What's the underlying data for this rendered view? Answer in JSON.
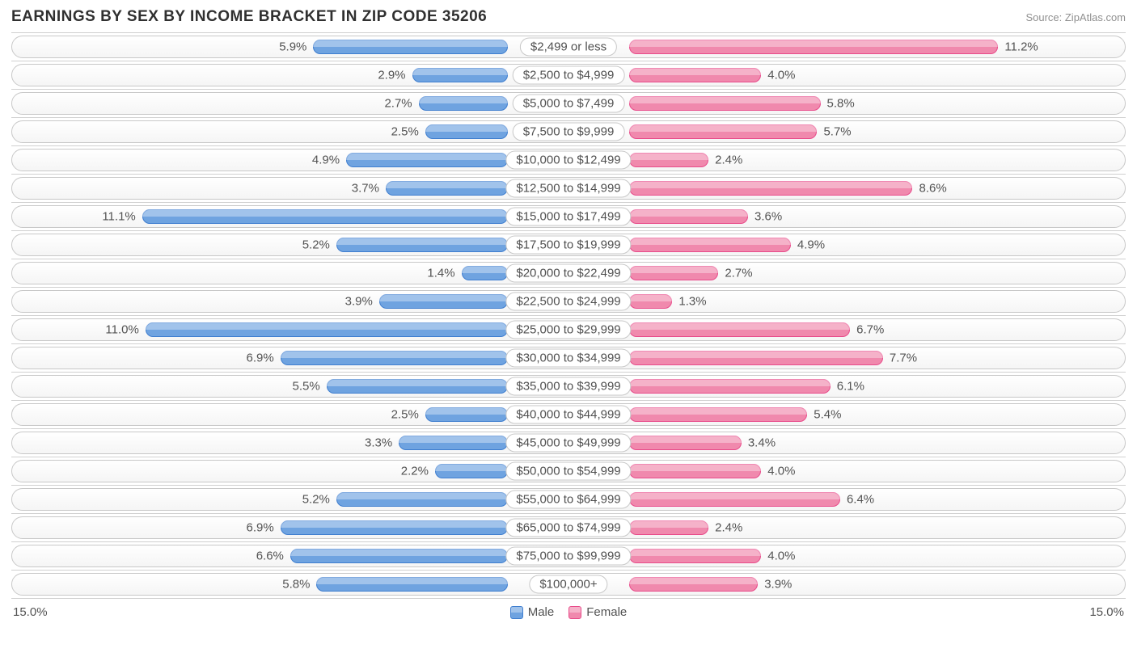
{
  "title": "EARNINGS BY SEX BY INCOME BRACKET IN ZIP CODE 35206",
  "source": "Source: ZipAtlas.com",
  "axis_max": 15.0,
  "axis_label_left": "15.0%",
  "axis_label_right": "15.0%",
  "legend": {
    "male": {
      "label": "Male",
      "color": "#6fa3e0",
      "border": "#3f7ecf"
    },
    "female": {
      "label": "Female",
      "color": "#f089ad",
      "border": "#e84b8a"
    }
  },
  "colors": {
    "male_bg": "#6fa3e0",
    "male_border": "#3f7ecf",
    "female_bg": "#f089ad",
    "female_border": "#e84b8a",
    "text": "#535353",
    "track_border": "#c8c8c8",
    "grid": "#d0d0d0"
  },
  "rows": [
    {
      "label": "$2,499 or less",
      "male": 5.9,
      "female": 11.2
    },
    {
      "label": "$2,500 to $4,999",
      "male": 2.9,
      "female": 4.0
    },
    {
      "label": "$5,000 to $7,499",
      "male": 2.7,
      "female": 5.8
    },
    {
      "label": "$7,500 to $9,999",
      "male": 2.5,
      "female": 5.7
    },
    {
      "label": "$10,000 to $12,499",
      "male": 4.9,
      "female": 2.4
    },
    {
      "label": "$12,500 to $14,999",
      "male": 3.7,
      "female": 8.6
    },
    {
      "label": "$15,000 to $17,499",
      "male": 11.1,
      "female": 3.6
    },
    {
      "label": "$17,500 to $19,999",
      "male": 5.2,
      "female": 4.9
    },
    {
      "label": "$20,000 to $22,499",
      "male": 1.4,
      "female": 2.7
    },
    {
      "label": "$22,500 to $24,999",
      "male": 3.9,
      "female": 1.3
    },
    {
      "label": "$25,000 to $29,999",
      "male": 11.0,
      "female": 6.7
    },
    {
      "label": "$30,000 to $34,999",
      "male": 6.9,
      "female": 7.7
    },
    {
      "label": "$35,000 to $39,999",
      "male": 5.5,
      "female": 6.1
    },
    {
      "label": "$40,000 to $44,999",
      "male": 2.5,
      "female": 5.4
    },
    {
      "label": "$45,000 to $49,999",
      "male": 3.3,
      "female": 3.4
    },
    {
      "label": "$50,000 to $54,999",
      "male": 2.2,
      "female": 4.0
    },
    {
      "label": "$55,000 to $64,999",
      "male": 5.2,
      "female": 6.4
    },
    {
      "label": "$65,000 to $74,999",
      "male": 6.9,
      "female": 2.4
    },
    {
      "label": "$75,000 to $99,999",
      "male": 6.6,
      "female": 4.0
    },
    {
      "label": "$100,000+",
      "male": 5.8,
      "female": 3.9
    }
  ]
}
